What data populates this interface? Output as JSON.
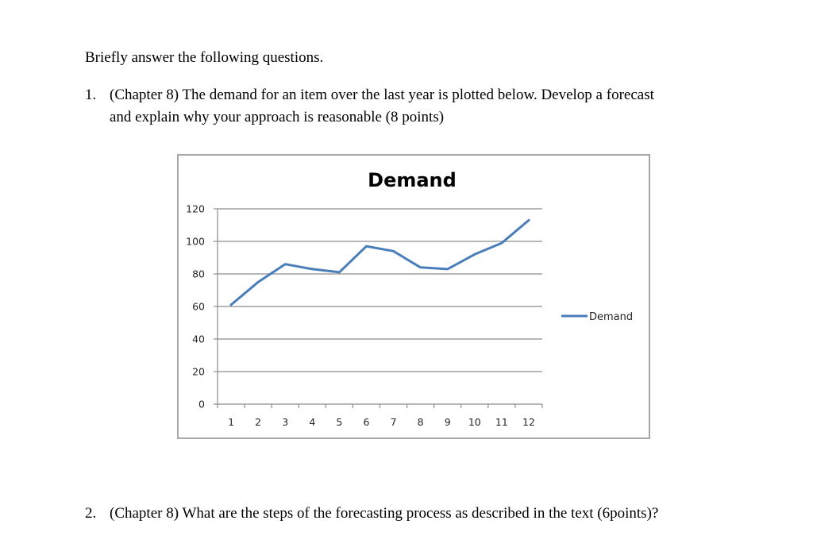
{
  "document": {
    "intro": "Briefly answer the following questions.",
    "questions": [
      {
        "number": "1.",
        "lines": [
          "(Chapter 8) The demand for an item over the last year is plotted below. Develop a forecast",
          "and explain why your approach is reasonable (8 points)"
        ]
      },
      {
        "number": "2.",
        "lines": [
          "(Chapter 8)  What are the steps of the forecasting process as described in the text (6points)?"
        ]
      }
    ]
  },
  "chart_data": {
    "type": "line",
    "title": "Demand",
    "xlabel": "",
    "ylabel": "",
    "categories": [
      "1",
      "2",
      "3",
      "4",
      "5",
      "6",
      "7",
      "8",
      "9",
      "10",
      "11",
      "12"
    ],
    "series": [
      {
        "name": "Demand",
        "color": "#4a7ebb",
        "values": [
          61,
          75,
          86,
          83,
          81,
          97,
          94,
          84,
          83,
          92,
          99,
          113
        ]
      }
    ],
    "y_ticks": [
      "0",
      "20",
      "40",
      "60",
      "80",
      "100",
      "120"
    ],
    "ylim": [
      0,
      120
    ],
    "grid": true,
    "legend_position": "right",
    "legend": [
      "Demand"
    ]
  }
}
